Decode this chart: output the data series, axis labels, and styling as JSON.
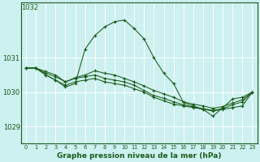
{
  "background_color": "#cdf0f0",
  "grid_color": "#ffffff",
  "line_color": "#1a5c1a",
  "text_color": "#1a5c1a",
  "y_ticks": [
    1029,
    1030,
    1031
  ],
  "ylim": [
    1028.5,
    1032.6
  ],
  "xlim": [
    -0.5,
    23.5
  ],
  "x_ticks": [
    0,
    1,
    2,
    3,
    4,
    5,
    6,
    7,
    8,
    9,
    10,
    11,
    12,
    13,
    14,
    15,
    16,
    17,
    18,
    19,
    20,
    21,
    22,
    23
  ],
  "xlabel": "Graphe pression niveau de la mer (hPa)",
  "series": [
    [
      1030.7,
      1030.7,
      1030.5,
      1030.35,
      1030.15,
      1030.25,
      1031.25,
      1031.65,
      1031.9,
      1032.05,
      1032.1,
      1031.85,
      1031.55,
      1031.0,
      1030.55,
      1030.25,
      1029.7,
      1029.6,
      1029.5,
      1029.3,
      1029.55,
      1029.8,
      1029.85,
      1030.0
    ],
    [
      1030.7,
      1030.7,
      1030.5,
      1030.35,
      1030.2,
      1030.3,
      1030.35,
      1030.4,
      1030.3,
      1030.25,
      1030.2,
      1030.1,
      1030.0,
      1029.85,
      1029.75,
      1029.65,
      1029.6,
      1029.55,
      1029.5,
      1029.45,
      1029.5,
      1029.55,
      1029.6,
      1030.0
    ],
    [
      1030.7,
      1030.7,
      1030.55,
      1030.45,
      1030.3,
      1030.4,
      1030.45,
      1030.5,
      1030.4,
      1030.35,
      1030.3,
      1030.2,
      1030.05,
      1029.9,
      1029.82,
      1029.72,
      1029.63,
      1029.57,
      1029.52,
      1029.47,
      1029.52,
      1029.63,
      1029.72,
      1030.0
    ],
    [
      1030.7,
      1030.7,
      1030.6,
      1030.5,
      1030.3,
      1030.42,
      1030.5,
      1030.62,
      1030.55,
      1030.5,
      1030.4,
      1030.3,
      1030.18,
      1030.05,
      1029.95,
      1029.85,
      1029.72,
      1029.65,
      1029.6,
      1029.53,
      1029.58,
      1029.68,
      1029.78,
      1030.0
    ]
  ]
}
